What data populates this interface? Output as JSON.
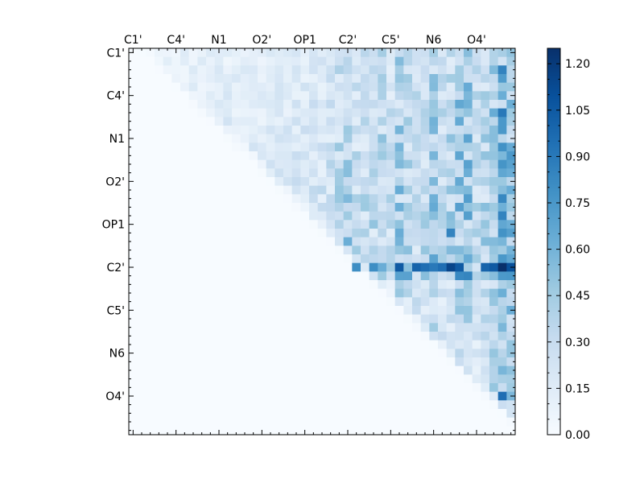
{
  "chart_data": {
    "type": "heatmap",
    "title": "",
    "xlabel": "",
    "ylabel": "",
    "x_tick_labels": [
      "C1'",
      "C4'",
      "N1",
      "O2'",
      "OP1",
      "C2'",
      "C5'",
      "N6",
      "O4'"
    ],
    "y_tick_labels": [
      "C1'",
      "C4'",
      "N1",
      "O2'",
      "OP1",
      "C2'",
      "C5'",
      "N6",
      "O4'"
    ],
    "colormap": [
      "#f7fbff",
      "#deebf7",
      "#c6dbef",
      "#9ecae1",
      "#6baed6",
      "#4292c6",
      "#2171b5",
      "#08519c",
      "#08306b"
    ],
    "colorbar": {
      "min": 0.0,
      "max": 1.25,
      "tick_labels": [
        "0.00",
        "0.15",
        "0.30",
        "0.45",
        "0.60",
        "0.75",
        "0.90",
        "1.05",
        "1.20"
      ]
    },
    "grid": false,
    "legend": "none",
    "matrix_shape": [
      45,
      45
    ],
    "structure": "upper-triangular matrix; lower triangle and diagonal near 0.0",
    "column_profile_upper": [
      0.02,
      0.03,
      0.03,
      0.03,
      0.03,
      0.04,
      0.04,
      0.05,
      0.06,
      0.07,
      0.07,
      0.07,
      0.07,
      0.07,
      0.07,
      0.08,
      0.09,
      0.09,
      0.12,
      0.15,
      0.18,
      0.2,
      0.2,
      0.25,
      0.4,
      0.55,
      0.3,
      0.35,
      0.35,
      0.45,
      0.3,
      0.6,
      0.45,
      0.35,
      0.35,
      0.65,
      0.35,
      0.45,
      0.7,
      0.7,
      0.35,
      0.45,
      0.65,
      0.85,
      0.75
    ],
    "row_profile_upper": [
      0.22,
      0.22,
      0.25,
      0.25,
      0.28,
      0.28,
      0.3,
      0.3,
      0.32,
      0.32,
      0.34,
      0.34,
      0.36,
      0.36,
      0.36,
      0.36,
      0.38,
      0.38,
      0.4,
      0.4,
      0.45,
      0.4,
      0.4,
      0.42,
      0.45,
      0.55,
      0.65,
      0.12,
      0.15,
      0.16,
      0.16,
      0.16,
      0.14,
      0.14,
      0.12,
      0.12,
      0.12,
      0.12,
      0.14,
      0.16,
      0.18,
      0.2,
      0.24,
      0.3,
      0.1
    ],
    "hotspots": [
      {
        "row": 21,
        "col": 37,
        "value": 0.85
      },
      {
        "row": 25,
        "col": 26,
        "value": 0.8
      },
      {
        "row": 25,
        "col": 28,
        "value": 0.8
      },
      {
        "row": 25,
        "col": 31,
        "value": 1.05
      },
      {
        "row": 25,
        "col": 33,
        "value": 1.0
      },
      {
        "row": 25,
        "col": 34,
        "value": 0.95
      },
      {
        "row": 25,
        "col": 35,
        "value": 0.9
      },
      {
        "row": 25,
        "col": 36,
        "value": 0.95
      },
      {
        "row": 25,
        "col": 37,
        "value": 1.15
      },
      {
        "row": 25,
        "col": 38,
        "value": 1.05
      },
      {
        "row": 25,
        "col": 41,
        "value": 1.0
      },
      {
        "row": 25,
        "col": 42,
        "value": 1.05
      },
      {
        "row": 25,
        "col": 43,
        "value": 1.25
      },
      {
        "row": 25,
        "col": 44,
        "value": 1.1
      },
      {
        "row": 24,
        "col": 43,
        "value": 0.75
      },
      {
        "row": 2,
        "col": 43,
        "value": 0.85
      },
      {
        "row": 7,
        "col": 43,
        "value": 0.9
      },
      {
        "row": 40,
        "col": 43,
        "value": 0.95
      },
      {
        "row": 19,
        "col": 43,
        "value": 0.85
      }
    ]
  }
}
